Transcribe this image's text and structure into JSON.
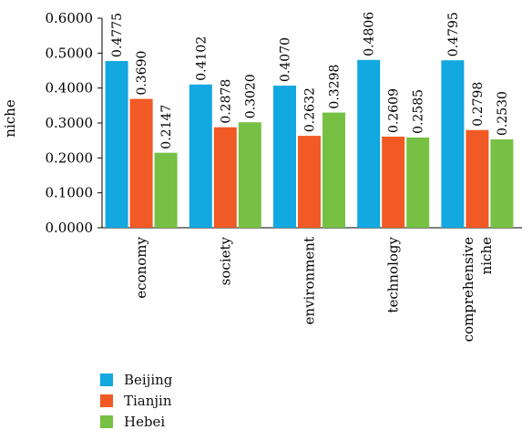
{
  "chart_data": {
    "type": "bar",
    "title": "",
    "xlabel": "",
    "ylabel": "niche",
    "ylim": [
      0,
      0.6
    ],
    "yticks": [
      "0.0000",
      "0.1000",
      "0.2000",
      "0.3000",
      "0.4000",
      "0.5000",
      "0.6000"
    ],
    "grid": false,
    "legend_position": "bottom",
    "categories": [
      [
        "economy"
      ],
      [
        "society"
      ],
      [
        "environment"
      ],
      [
        "technology"
      ],
      [
        "comprehensive",
        "niche"
      ]
    ],
    "series": [
      {
        "name": "Beijing",
        "color": "#12a8e0",
        "values": [
          0.4775,
          0.4102,
          0.407,
          0.4806,
          0.4795
        ],
        "labels": [
          "0.4775",
          "0.4102",
          "0.4070",
          "0.4806",
          "0.4795"
        ]
      },
      {
        "name": "Tianjin",
        "color": "#f15a24",
        "values": [
          0.369,
          0.2878,
          0.2632,
          0.2609,
          0.2798
        ],
        "labels": [
          "0.3690",
          "0.2878",
          "0.2632",
          "0.2609",
          "0.2798"
        ]
      },
      {
        "name": "Hebei",
        "color": "#76c043",
        "values": [
          0.2147,
          0.302,
          0.3298,
          0.2585,
          0.253
        ],
        "labels": [
          "0.2147",
          "0.3020",
          "0.3298",
          "0.2585",
          "0.2530"
        ]
      }
    ]
  }
}
